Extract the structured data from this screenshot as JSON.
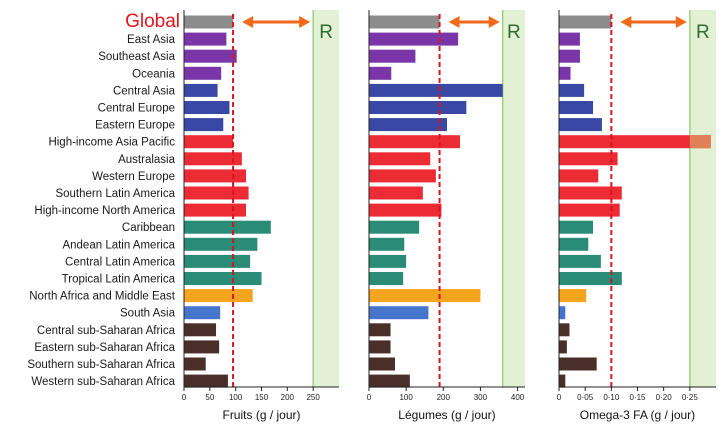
{
  "global_label": "Global",
  "reference_label": "R",
  "colors": {
    "global": "#8c8c8c",
    "purple": "#7a35a8",
    "blue": "#3848a4",
    "red": "#ec2b35",
    "teal": "#2a8c76",
    "orange": "#f5a41e",
    "lightblue": "#4676cc",
    "brown": "#4a2e2a",
    "reference_fill": "#e2f0d4",
    "reference_line": "#8ccf70",
    "global_line": "#d9141c",
    "arrow": "#f06a1a",
    "overflow": "#e08a5a"
  },
  "chart_data": {
    "type": "bar",
    "orientation": "horizontal",
    "categories": [
      "Global",
      "East Asia",
      "Southeast Asia",
      "Oceania",
      "Central Asia",
      "Central Europe",
      "Eastern Europe",
      "High-income Asia Pacific",
      "Australasia",
      "Western Europe",
      "Southern Latin America",
      "High-income North America",
      "Caribbean",
      "Andean Latin America",
      "Central Latin America",
      "Tropical Latin America",
      "North Africa and Middle East",
      "South Asia",
      "Central sub-Saharan Africa",
      "Eastern sub-Saharan Africa",
      "Southern sub-Saharan Africa",
      "Western sub-Saharan Africa"
    ],
    "category_colors": [
      "global",
      "purple",
      "purple",
      "purple",
      "blue",
      "blue",
      "blue",
      "red",
      "red",
      "red",
      "red",
      "red",
      "teal",
      "teal",
      "teal",
      "teal",
      "orange",
      "lightblue",
      "brown",
      "brown",
      "brown",
      "brown"
    ],
    "panels": [
      {
        "xlabel": "Fruits (g / jour)",
        "xlim": [
          0,
          300
        ],
        "ticks": [
          0,
          50,
          100,
          150,
          200,
          250
        ],
        "tick_labels": [
          "0",
          "50",
          "100",
          "150",
          "200",
          "250"
        ],
        "global_value": 95,
        "reference_range": [
          250,
          300
        ],
        "values": [
          95,
          82,
          102,
          72,
          65,
          88,
          76,
          95,
          112,
          120,
          125,
          120,
          168,
          142,
          128,
          150,
          133,
          70,
          62,
          68,
          42,
          85
        ]
      },
      {
        "xlabel": "Légumes (g / jour)",
        "xlim": [
          0,
          420
        ],
        "ticks": [
          0,
          100,
          200,
          300,
          400
        ],
        "tick_labels": [
          "0",
          "100",
          "200",
          "300",
          "400"
        ],
        "global_value": 190,
        "reference_range": [
          360,
          420
        ],
        "values": [
          190,
          240,
          125,
          60,
          360,
          262,
          210,
          245,
          165,
          180,
          145,
          195,
          135,
          95,
          100,
          92,
          300,
          160,
          58,
          58,
          70,
          110
        ]
      },
      {
        "xlabel": "Omega-3 FA (g / jour)",
        "xlim": [
          0,
          0.3
        ],
        "ticks": [
          0,
          0.05,
          0.1,
          0.15,
          0.2,
          0.25
        ],
        "tick_labels": [
          "0",
          "0·05",
          "0·10",
          "0·15",
          "0·20",
          "0·25"
        ],
        "global_value": 0.1,
        "reference_range": [
          0.25,
          0.3
        ],
        "values": [
          0.1,
          0.04,
          0.04,
          0.022,
          0.048,
          0.065,
          0.082,
          0.29,
          0.112,
          0.075,
          0.12,
          0.116,
          0.065,
          0.056,
          0.08,
          0.12,
          0.052,
          0.012,
          0.02,
          0.015,
          0.072,
          0.012
        ]
      }
    ]
  }
}
